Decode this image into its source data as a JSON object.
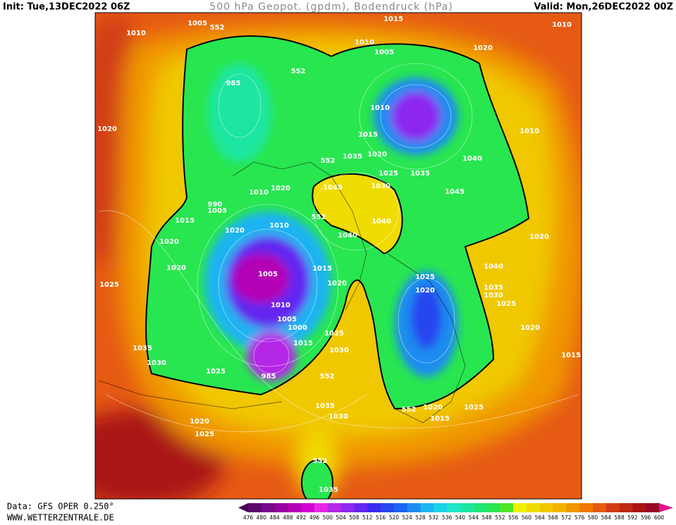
{
  "header": {
    "init": "Init: Tue,13DEC2022 06Z",
    "title": "500 hPa Geopot. (gpdm), Bodendruck (hPa)",
    "valid": "Valid: Mon,26DEC2022 00Z"
  },
  "footer": {
    "source": "Data: GFS OPER 0.250°",
    "site": "WWW.WETTERZENTRALE.DE"
  },
  "colorbar": {
    "ticks": [
      476,
      480,
      484,
      488,
      492,
      496,
      500,
      504,
      508,
      512,
      516,
      520,
      524,
      528,
      532,
      536,
      540,
      544,
      548,
      552,
      556,
      560,
      564,
      568,
      572,
      576,
      580,
      584,
      588,
      592,
      596,
      600
    ],
    "colors": [
      "#46005a",
      "#5a0a6e",
      "#780a8c",
      "#9600a0",
      "#b400b4",
      "#d200d2",
      "#e628e6",
      "#b428e6",
      "#8c28f0",
      "#6428f0",
      "#3c28f0",
      "#2846f0",
      "#1e64f0",
      "#1e8cf0",
      "#1eb4f0",
      "#1ed2e6",
      "#1ee6c8",
      "#1ee6a0",
      "#1ee678",
      "#28e650",
      "#50e628",
      "#f0f000",
      "#f0dc00",
      "#f0c800",
      "#f0b400",
      "#f09600",
      "#f07800",
      "#e65a14",
      "#d23c14",
      "#be2814",
      "#aa1414",
      "#960a28",
      "#e6148c"
    ]
  },
  "map": {
    "isobar_labels": [
      1010,
      1005,
      552,
      1015,
      1010,
      1005,
      1020,
      1010,
      985,
      552,
      1020,
      1010,
      1015,
      1020,
      1035,
      552,
      1025,
      1035,
      1040,
      1010,
      1030,
      1045,
      1020,
      1010,
      990,
      1005,
      552,
      1040,
      1045,
      1015,
      1020,
      1010,
      1020,
      1040,
      1020,
      1020,
      1005,
      1015,
      1025,
      1040,
      1025,
      1020,
      1020,
      1035,
      1030,
      1025,
      1010,
      1005,
      1000,
      1025,
      1015,
      1030,
      1020,
      1035,
      1030,
      1015,
      1025,
      985,
      552,
      1035,
      552,
      1020,
      1025,
      1030,
      1015,
      1020,
      1025,
      552,
      1035
    ]
  }
}
